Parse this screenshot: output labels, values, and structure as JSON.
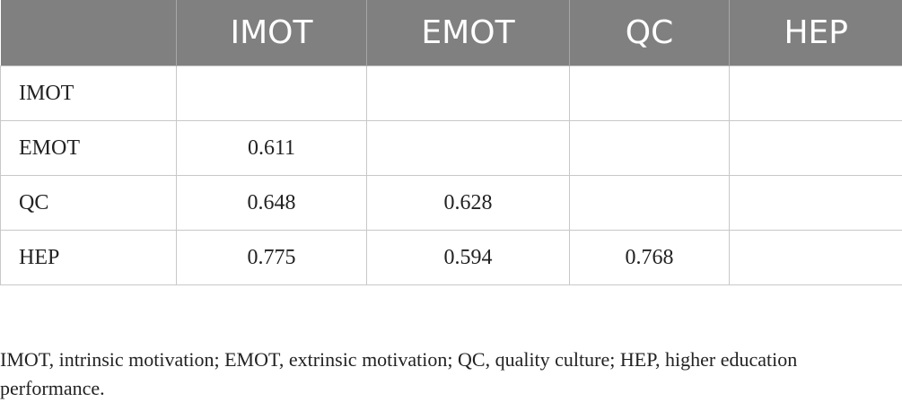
{
  "table": {
    "columns": [
      "IMOT",
      "EMOT",
      "QC",
      "HEP"
    ],
    "rows": [
      [
        "IMOT",
        null,
        null,
        null,
        null
      ],
      [
        "EMOT",
        0.611,
        null,
        null,
        null
      ],
      [
        "QC",
        0.648,
        0.628,
        null,
        null
      ],
      [
        "HEP",
        0.775,
        0.594,
        0.768,
        null
      ]
    ]
  },
  "footnote": "IMOT, intrinsic motivation; EMOT, extrinsic motivation; QC, quality culture; HEP, higher education performance."
}
